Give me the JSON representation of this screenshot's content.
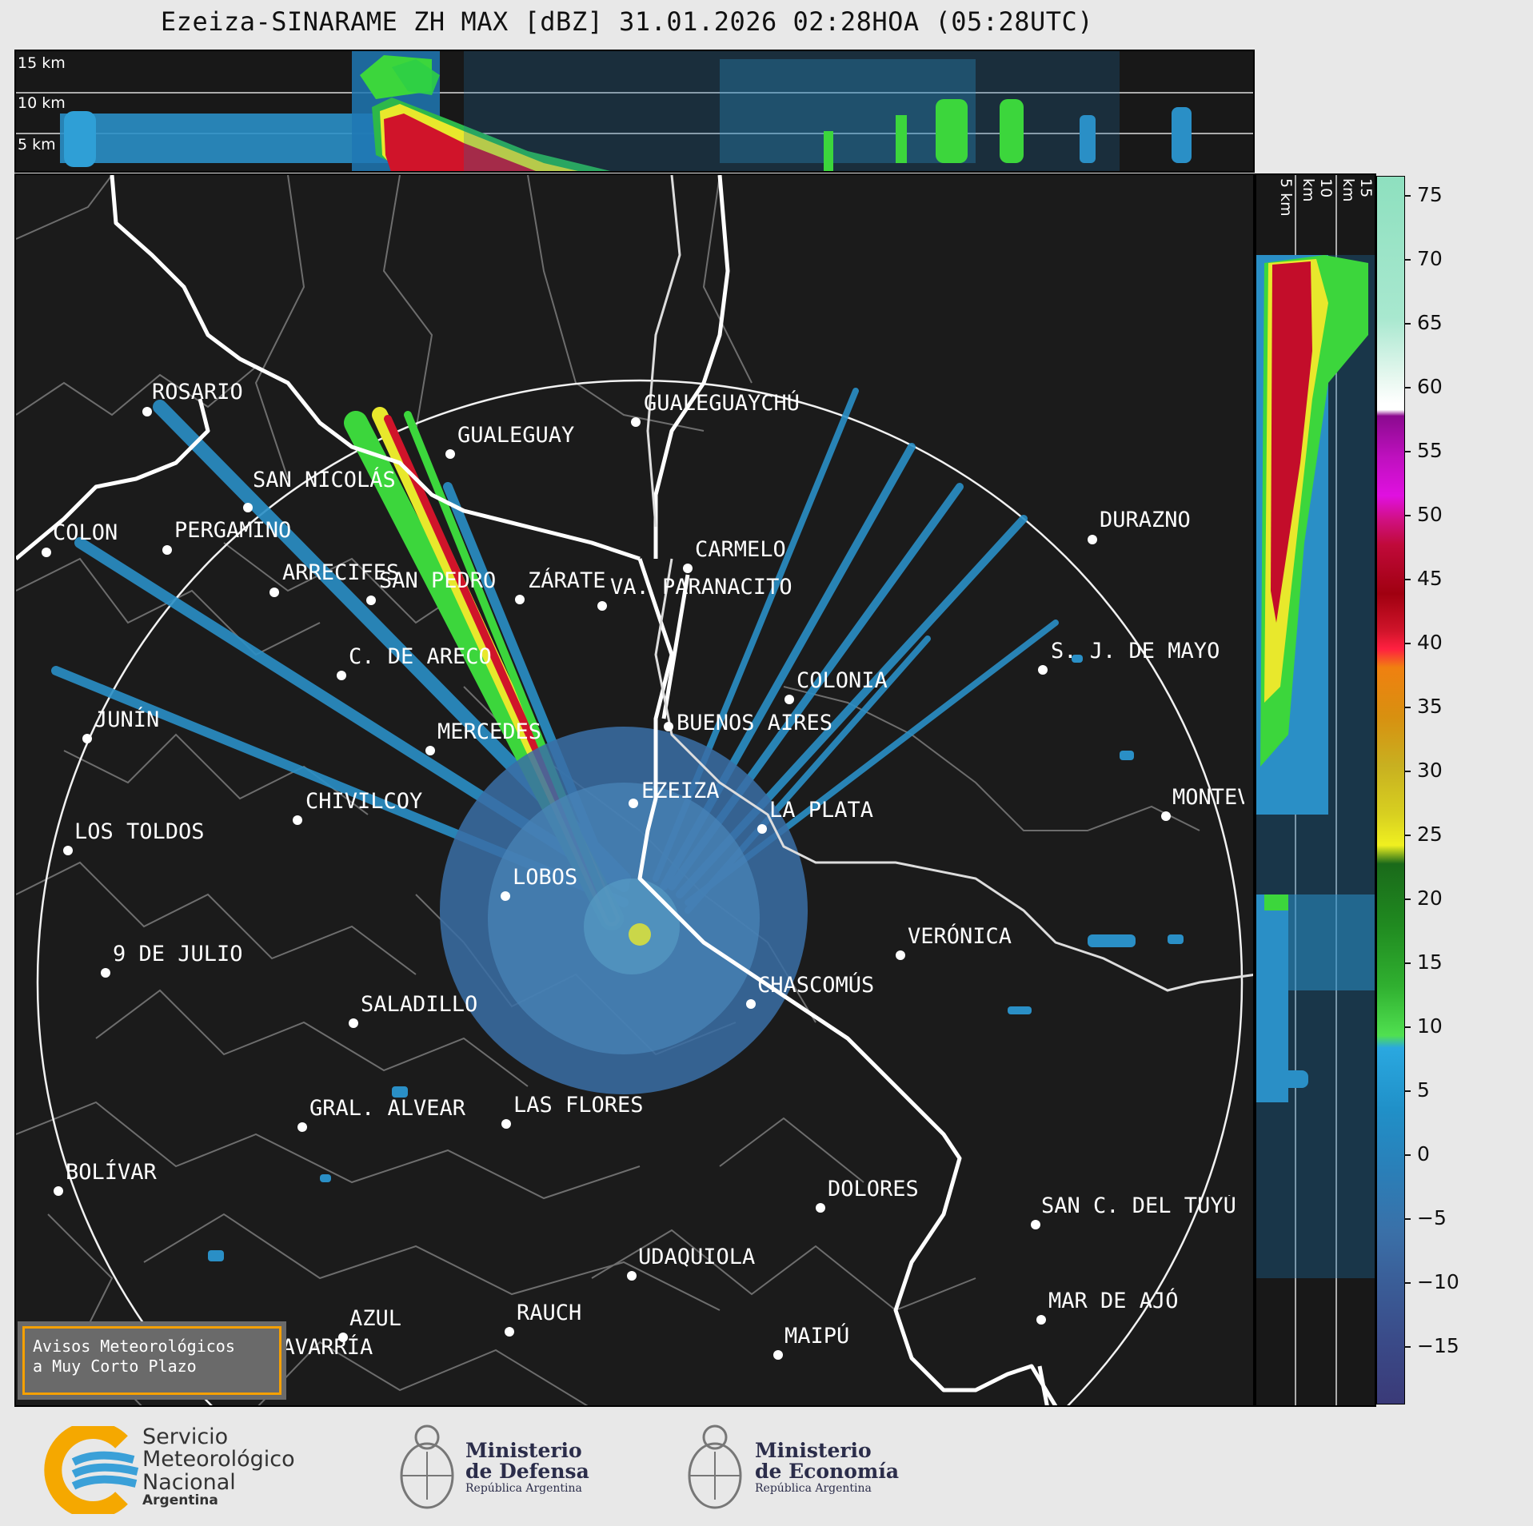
{
  "title": "Ezeiza-SINARAME ZH MAX [dBZ] 31.01.2026 02:28HOA (05:28UTC)",
  "top_strip": {
    "height_labels": [
      "15 km",
      "10 km",
      "5 km"
    ]
  },
  "side_strip": {
    "height_labels": [
      "5 km",
      "10 km",
      "15 km"
    ]
  },
  "colorbar": {
    "unit": "dBZ",
    "ticks": [
      "75",
      "70",
      "65",
      "60",
      "55",
      "50",
      "45",
      "40",
      "35",
      "30",
      "25",
      "20",
      "15",
      "10",
      "5",
      "0",
      "−5",
      "−10",
      "−15"
    ]
  },
  "cities": [
    {
      "name": "ROSARIO"
    },
    {
      "name": "GUALEGUAYCHÚ"
    },
    {
      "name": "GUALEGUAY"
    },
    {
      "name": "SAN NICOLÁS"
    },
    {
      "name": "DURAZNO"
    },
    {
      "name": "SAN PEDRO"
    },
    {
      "name": "VA. PARANACITO"
    },
    {
      "name": "COLON"
    },
    {
      "name": "PERGAMINO"
    },
    {
      "name": "CARMELO"
    },
    {
      "name": "ARRECIFES"
    },
    {
      "name": "ZÁRATE"
    },
    {
      "name": "S. J. DE MAYO"
    },
    {
      "name": "C. DE ARECO"
    },
    {
      "name": "COLONIA"
    },
    {
      "name": "BUENOS AIRES"
    },
    {
      "name": "JUNÍN"
    },
    {
      "name": "MERCEDES"
    },
    {
      "name": "EZEIZA"
    },
    {
      "name": "MONTEVIDEO"
    },
    {
      "name": "CHIVILCOY"
    },
    {
      "name": "LA PLATA"
    },
    {
      "name": "LOS TOLDOS"
    },
    {
      "name": "LOBOS"
    },
    {
      "name": "VERÓNICA"
    },
    {
      "name": "9 DE JULIO"
    },
    {
      "name": "CHASCOMÚS"
    },
    {
      "name": "SALADILLO"
    },
    {
      "name": "GRAL. ALVEAR"
    },
    {
      "name": "LAS FLORES"
    },
    {
      "name": "BOLÍVAR"
    },
    {
      "name": "DOLORES"
    },
    {
      "name": "SAN C. DEL TUYÚ"
    },
    {
      "name": "UDAQUIOLA"
    },
    {
      "name": "MAR DE AJÓ"
    },
    {
      "name": "AZUL"
    },
    {
      "name": "RAUCH"
    },
    {
      "name": "OLAVARRÍA"
    },
    {
      "name": "MAIPÚ"
    }
  ],
  "avisos": {
    "line1": "Avisos Meteorológicos",
    "line2": "a Muy Corto Plazo"
  },
  "logos": {
    "smn": {
      "line1": "Servicio",
      "line2": "Meteorológico",
      "line3": "Nacional",
      "line4": "Argentina"
    },
    "defensa": {
      "line1": "Ministerio",
      "line2": "de Defensa",
      "line3": "República Argentina"
    },
    "economia": {
      "line1": "Ministerio",
      "line2": "de Economía",
      "line3": "República Argentina"
    }
  }
}
